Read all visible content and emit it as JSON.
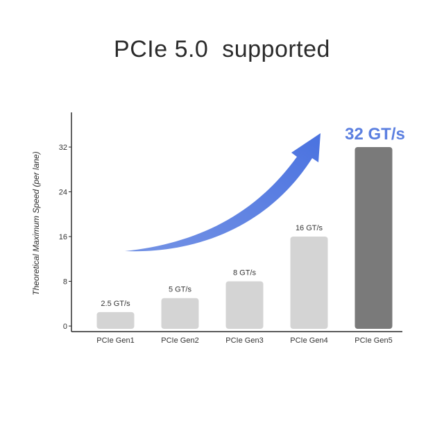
{
  "chart_data": {
    "type": "bar",
    "title": "PCIe 5.0  supported",
    "xlabel": "",
    "ylabel": "Theoretical Maximum Speed (per lane)",
    "categories": [
      "PCIe Gen1",
      "PCIe Gen2",
      "PCIe Gen3",
      "PCIe Gen4",
      "PCIe Gen5"
    ],
    "values": [
      2.5,
      5,
      8,
      16,
      32
    ],
    "data_labels": [
      "2.5 GT/s",
      "5 GT/s",
      "8 GT/s",
      "16 GT/s",
      "32 GT/s"
    ],
    "yticks": [
      0,
      8,
      16,
      24,
      32
    ],
    "ylim": [
      0,
      38
    ],
    "grid": false,
    "bar_colors": [
      "#d4d4d4",
      "#d4d4d4",
      "#d4d4d4",
      "#d4d4d4",
      "#7a7a7a"
    ],
    "highlight_color": "#5b7fe0",
    "highlight_index": 4,
    "arrow_color": "#5b7fe0"
  }
}
